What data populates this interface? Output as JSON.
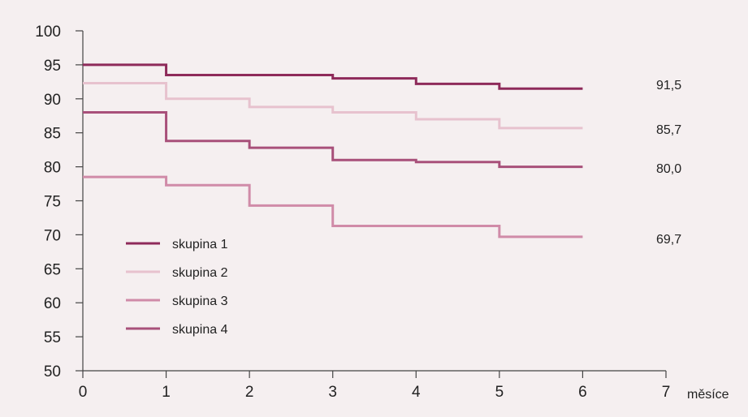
{
  "chart_data": {
    "type": "line",
    "step": true,
    "xlabel": "měsíce",
    "ylabel": "",
    "xlim": [
      0,
      7
    ],
    "ylim": [
      50,
      100
    ],
    "x_ticks": [
      "0",
      "1",
      "2",
      "3",
      "4",
      "5",
      "6",
      "7"
    ],
    "y_ticks": [
      "50",
      "55",
      "60",
      "65",
      "70",
      "75",
      "80",
      "85",
      "90",
      "95",
      "100"
    ],
    "grid": false,
    "legend_position": "bottom-left",
    "x": [
      0,
      1,
      2,
      3,
      4,
      5,
      6
    ],
    "series": [
      {
        "name": "skupina 1",
        "color": "#8e2a5a",
        "values": [
          95.0,
          93.5,
          93.5,
          93.0,
          92.2,
          91.5,
          91.5
        ],
        "end_label": "91,5"
      },
      {
        "name": "skupina 2",
        "color": "#e7c2ce",
        "values": [
          92.3,
          90.0,
          88.8,
          88.0,
          87.0,
          85.7,
          85.7
        ],
        "end_label": "85,7"
      },
      {
        "name": "skupina 3",
        "color": "#d08ba8",
        "values": [
          78.5,
          77.3,
          74.3,
          71.3,
          71.3,
          69.7,
          69.7
        ],
        "end_label": "69,7"
      },
      {
        "name": "skupina 4",
        "color": "#a8507a",
        "values": [
          88.0,
          83.8,
          82.8,
          81.0,
          80.7,
          80.0,
          80.0
        ],
        "end_label": "80,0"
      }
    ]
  }
}
